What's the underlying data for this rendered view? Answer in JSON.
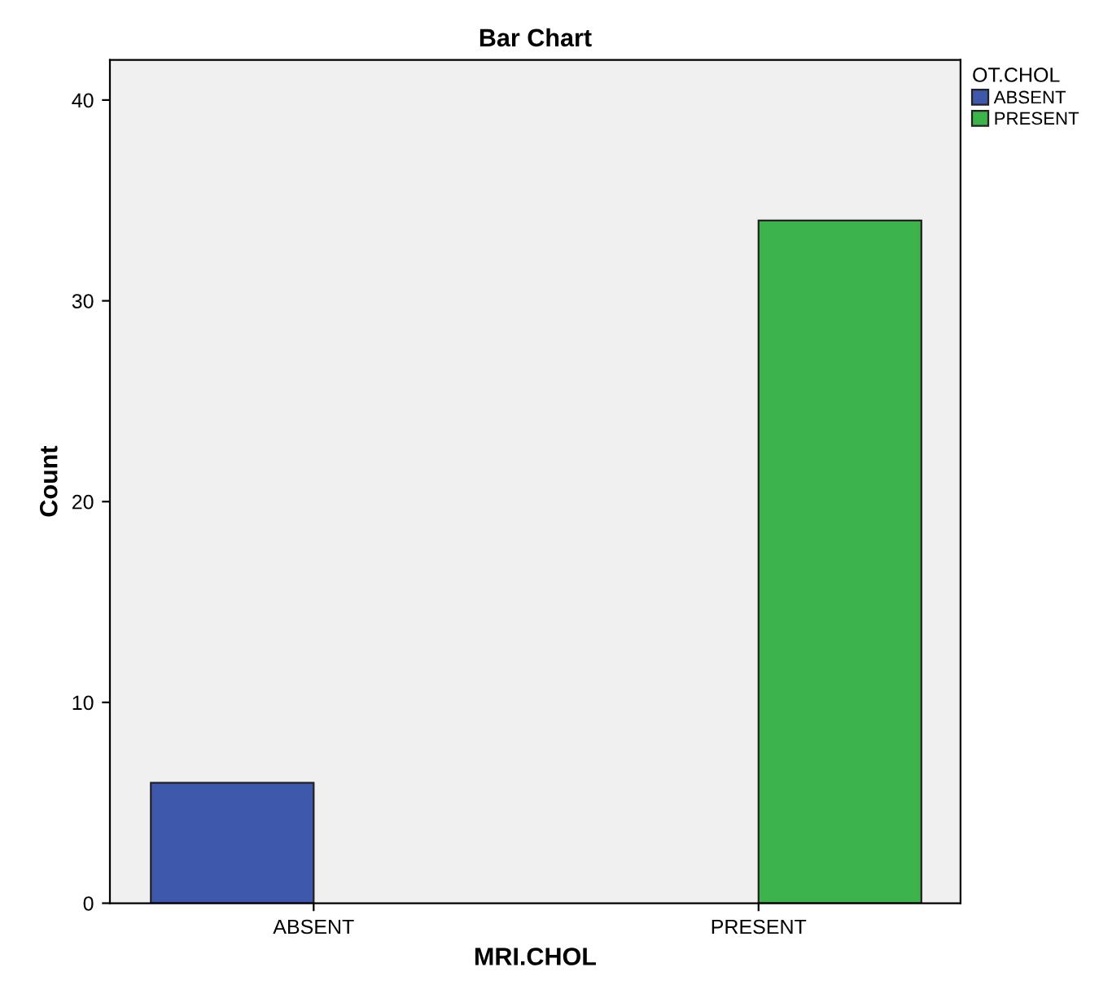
{
  "chart_data": {
    "type": "bar",
    "title": "Bar Chart",
    "xlabel": "MRI.CHOL",
    "ylabel": "Count",
    "legend_title": "OT.CHOL",
    "categories": [
      "ABSENT",
      "PRESENT"
    ],
    "series": [
      {
        "name": "ABSENT",
        "color": "#3e58ac",
        "values": [
          6,
          null
        ]
      },
      {
        "name": "PRESENT",
        "color": "#3cb44b",
        "values": [
          null,
          34
        ]
      }
    ],
    "ylim": [
      0,
      42
    ],
    "yticks": [
      0,
      10,
      20,
      30,
      40
    ],
    "grid": false,
    "legend": "top right"
  }
}
